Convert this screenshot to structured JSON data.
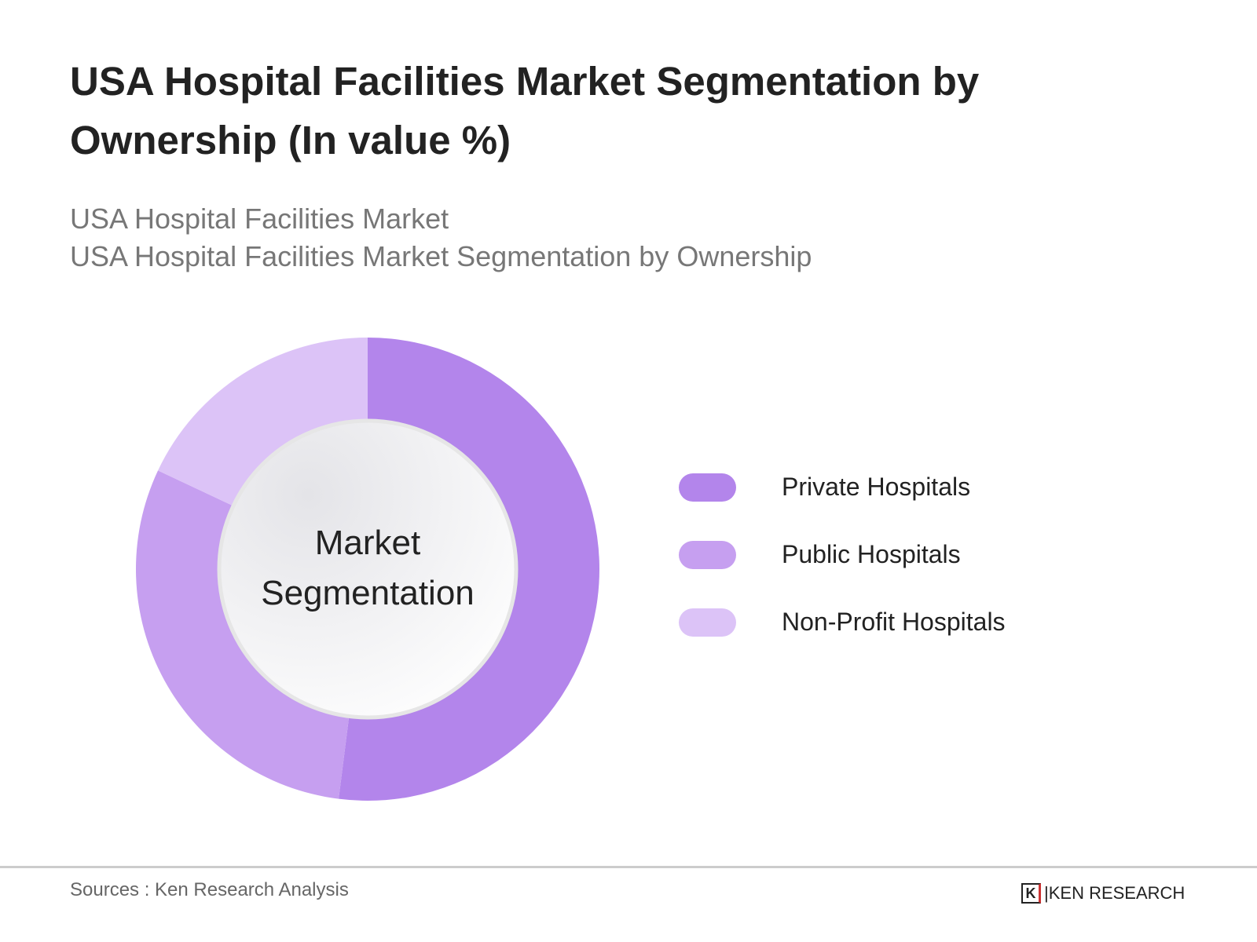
{
  "title": "USA Hospital Facilities Market Segmentation by Ownership (In value %)",
  "subtitles": [
    "USA Hospital Facilities Market",
    "USA Hospital Facilities Market Segmentation by Ownership"
  ],
  "chart_data": {
    "type": "pie",
    "variant": "donut",
    "center_label": "Market Segmentation",
    "categories": [
      "Private Hospitals",
      "Public Hospitals",
      "Non-Profit Hospitals"
    ],
    "values": [
      52,
      30,
      18
    ],
    "colors": [
      "#b385eb",
      "#c69ff0",
      "#dcc3f7"
    ],
    "legend_position": "right"
  },
  "footer": {
    "sources": "Sources : Ken Research Analysis",
    "logo_text": "KEN RESEARCH"
  }
}
